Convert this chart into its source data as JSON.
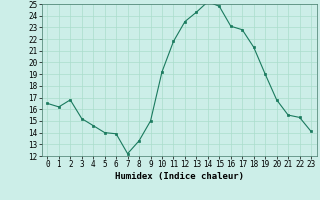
{
  "x": [
    0,
    1,
    2,
    3,
    4,
    5,
    6,
    7,
    8,
    9,
    10,
    11,
    12,
    13,
    14,
    15,
    16,
    17,
    18,
    19,
    20,
    21,
    22,
    23
  ],
  "y": [
    16.5,
    16.2,
    16.8,
    15.2,
    14.6,
    14.0,
    13.9,
    12.2,
    13.3,
    15.0,
    19.2,
    21.8,
    23.5,
    24.3,
    25.2,
    24.8,
    23.1,
    22.8,
    21.3,
    19.0,
    16.8,
    15.5,
    15.3,
    14.1
  ],
  "line_color": "#1a7a5e",
  "marker_color": "#1a7a5e",
  "bg_color": "#cceee8",
  "grid_color": "#aaddcc",
  "xlabel": "Humidex (Indice chaleur)",
  "ylim": [
    12,
    25
  ],
  "xlim": [
    -0.5,
    23.5
  ],
  "yticks": [
    12,
    13,
    14,
    15,
    16,
    17,
    18,
    19,
    20,
    21,
    22,
    23,
    24,
    25
  ],
  "xticks": [
    0,
    1,
    2,
    3,
    4,
    5,
    6,
    7,
    8,
    9,
    10,
    11,
    12,
    13,
    14,
    15,
    16,
    17,
    18,
    19,
    20,
    21,
    22,
    23
  ],
  "tick_fontsize": 5.5,
  "label_fontsize": 6.5
}
